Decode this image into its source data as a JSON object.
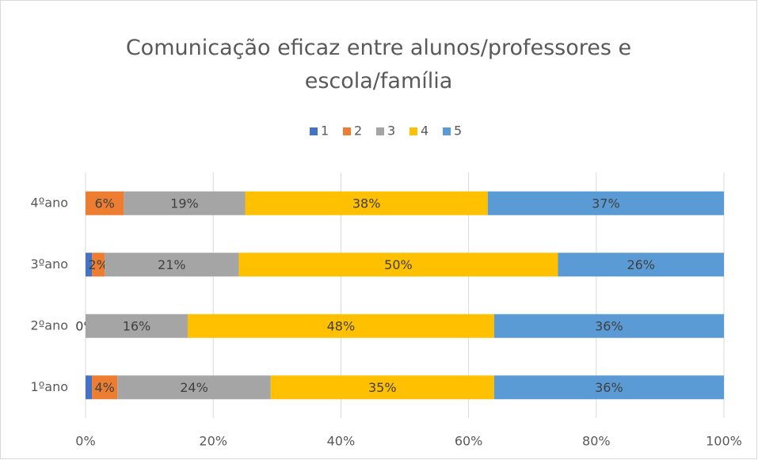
{
  "chart_data": {
    "type": "stacked_barh",
    "title": "Comunicação eficaz entre alunos/professores e escola/família",
    "categories": [
      "1ºano",
      "2ºano",
      "3ºano",
      "4ºano"
    ],
    "series": [
      {
        "name": "1",
        "color": "#4472c4",
        "values": [
          1,
          null,
          1,
          null
        ]
      },
      {
        "name": "2",
        "color": "#ed7d31",
        "values": [
          4,
          0,
          2,
          6
        ],
        "value_labels": [
          "4%",
          "0%",
          "2%",
          "6%"
        ]
      },
      {
        "name": "3",
        "color": "#a5a5a5",
        "values": [
          24,
          16,
          21,
          19
        ],
        "value_labels": [
          "24%",
          "16%",
          "21%",
          "19%"
        ]
      },
      {
        "name": "4",
        "color": "#ffc000",
        "values": [
          35,
          48,
          50,
          38
        ],
        "value_labels": [
          "35%",
          "48%",
          "50%",
          "38%"
        ]
      },
      {
        "name": "5",
        "color": "#5b9bd5",
        "values": [
          36,
          36,
          26,
          37
        ],
        "value_labels": [
          "36%",
          "36%",
          "26%",
          "37%"
        ]
      }
    ],
    "xlim": [
      0,
      100
    ],
    "xticks": [
      {
        "value": 0,
        "label": "0%"
      },
      {
        "value": 20,
        "label": "20%"
      },
      {
        "value": 40,
        "label": "40%"
      },
      {
        "value": 60,
        "label": "60%"
      },
      {
        "value": 80,
        "label": "80%"
      },
      {
        "value": 100,
        "label": "100%"
      }
    ],
    "grid": true,
    "legend": "top"
  }
}
